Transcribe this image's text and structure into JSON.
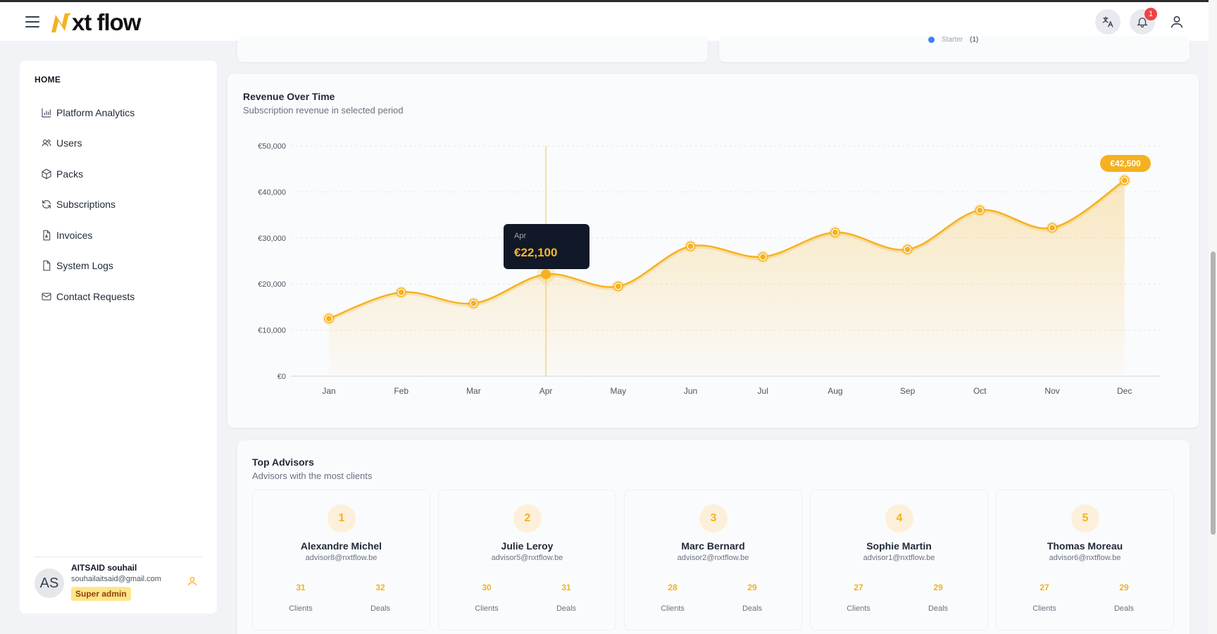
{
  "header": {
    "logo_text": "xt flow",
    "notification_count": "1",
    "brand_color": "#f5b120"
  },
  "sidebar": {
    "section": "HOME",
    "items": [
      {
        "label": "Platform Analytics",
        "icon": "bar-chart-icon"
      },
      {
        "label": "Users",
        "icon": "users-icon"
      },
      {
        "label": "Packs",
        "icon": "package-icon"
      },
      {
        "label": "Subscriptions",
        "icon": "refresh-icon"
      },
      {
        "label": "Invoices",
        "icon": "file-invoice-icon"
      },
      {
        "label": "System Logs",
        "icon": "file-icon"
      },
      {
        "label": "Contact Requests",
        "icon": "mail-icon"
      }
    ],
    "user": {
      "initials": "AS",
      "name": "AITSAID souhail",
      "email": "souhailaitsaid@gmail.com",
      "role": "Super admin"
    }
  },
  "top_cards": {
    "legend_label": "Starter",
    "legend_count": "(1)"
  },
  "revenue": {
    "title": "Revenue Over Time",
    "subtitle": "Subscription revenue in selected period",
    "tooltip": {
      "month": "Apr",
      "value": "€22,100"
    },
    "peak_label": "€42,500"
  },
  "chart_data": {
    "type": "area",
    "categories": [
      "Jan",
      "Feb",
      "Mar",
      "Apr",
      "May",
      "Jun",
      "Jul",
      "Aug",
      "Sep",
      "Oct",
      "Nov",
      "Dec"
    ],
    "values": [
      12500,
      18200,
      15800,
      22100,
      19500,
      28200,
      25900,
      31200,
      27500,
      36000,
      32200,
      42500
    ],
    "ylim": [
      0,
      50000
    ],
    "yticks": [
      "€0",
      "€10,000",
      "€20,000",
      "€30,000",
      "€40,000",
      "€50,000"
    ],
    "grid": true,
    "color": "#f5b120"
  },
  "advisors": {
    "title": "Top Advisors",
    "subtitle": "Advisors with the most clients",
    "clients_label": "Clients",
    "deals_label": "Deals",
    "list": [
      {
        "rank": "1",
        "name": "Alexandre Michel",
        "email": "advisor8@nxtflow.be",
        "clients": "31",
        "deals": "32"
      },
      {
        "rank": "2",
        "name": "Julie Leroy",
        "email": "advisor5@nxtflow.be",
        "clients": "30",
        "deals": "31"
      },
      {
        "rank": "3",
        "name": "Marc Bernard",
        "email": "advisor2@nxtflow.be",
        "clients": "28",
        "deals": "29"
      },
      {
        "rank": "4",
        "name": "Sophie Martin",
        "email": "advisor1@nxtflow.be",
        "clients": "27",
        "deals": "29"
      },
      {
        "rank": "5",
        "name": "Thomas Moreau",
        "email": "advisor6@nxtflow.be",
        "clients": "27",
        "deals": "29"
      }
    ]
  }
}
